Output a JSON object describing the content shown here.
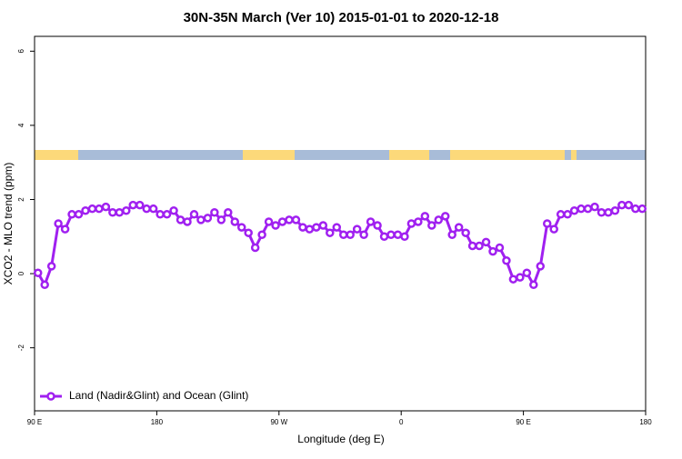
{
  "chart_data": {
    "type": "line",
    "title": "30N-35N March (Ver 10)   2015-01-01 to 2020-12-18",
    "x_label": "Longitude (deg E)",
    "y_label": "XCO2 - MLO trend (ppm)",
    "xlim": [
      90,
      540
    ],
    "xticks": [
      {
        "value": 90,
        "label": "90 E"
      },
      180,
      {
        "value": 270,
        "label": "90 W"
      },
      {
        "value": 360,
        "label": "0"
      },
      {
        "value": 450,
        "label": "90 E"
      },
      {
        "value": 540,
        "label": "180"
      }
    ],
    "ylim": [
      -3.7,
      6.4
    ],
    "yticks": [
      -2,
      0,
      2,
      4,
      6
    ],
    "legend": "bottom-left",
    "x": [
      92.5,
      97.5,
      102.5,
      107.5,
      112.5,
      117.5,
      122.5,
      127.5,
      132.5,
      137.5,
      142.5,
      147.5,
      152.5,
      157.5,
      162.5,
      167.5,
      172.5,
      177.5,
      182.5,
      187.5,
      192.5,
      197.5,
      202.5,
      207.5,
      212.5,
      217.5,
      222.5,
      227.5,
      232.5,
      237.5,
      242.5,
      247.5,
      252.5,
      257.5,
      262.5,
      267.5,
      272.5,
      277.5,
      282.5,
      287.5,
      292.5,
      297.5,
      302.5,
      307.5,
      312.5,
      317.5,
      322.5,
      327.5,
      332.5,
      337.5,
      342.5,
      347.5,
      352.5,
      357.5,
      362.5,
      367.5,
      372.5,
      377.5,
      382.5,
      387.5,
      392.5,
      397.5,
      402.5,
      407.5,
      412.5,
      417.5,
      422.5,
      427.5,
      432.5,
      437.5,
      442.5,
      447.5,
      452.5,
      457.5,
      462.5,
      467.5,
      472.5,
      477.5,
      482.5,
      487.5,
      492.5,
      497.5,
      502.5,
      507.5,
      512.5,
      517.5,
      522.5,
      527.5,
      532.5,
      537.5
    ],
    "series": [
      {
        "name": "Land (Nadir&Glint) and Ocean (Glint)",
        "color": "#a020f0",
        "values": [
          0.02,
          -0.3,
          0.2,
          1.35,
          1.2,
          1.6,
          1.6,
          1.7,
          1.75,
          1.75,
          1.8,
          1.65,
          1.65,
          1.7,
          1.85,
          1.85,
          1.75,
          1.75,
          1.6,
          1.6,
          1.7,
          1.45,
          1.4,
          1.6,
          1.45,
          1.5,
          1.65,
          1.45,
          1.65,
          1.4,
          1.25,
          1.1,
          0.7,
          1.05,
          1.4,
          1.3,
          1.4,
          1.45,
          1.45,
          1.25,
          1.2,
          1.25,
          1.3,
          1.1,
          1.25,
          1.05,
          1.05,
          1.2,
          1.05,
          1.4,
          1.3,
          1.0,
          1.05,
          1.05,
          1.0,
          1.35,
          1.4,
          1.55,
          1.3,
          1.45,
          1.55,
          1.05,
          1.25,
          1.1,
          0.75,
          0.75,
          0.85,
          0.6,
          0.7,
          0.35,
          -0.15,
          -0.1,
          0.02,
          -0.3,
          0.2,
          1.35,
          1.2,
          1.6,
          1.6,
          1.7,
          1.75,
          1.75,
          1.8,
          1.65,
          1.65,
          1.7,
          1.85,
          1.85,
          1.75,
          1.75
        ]
      }
    ]
  }
}
